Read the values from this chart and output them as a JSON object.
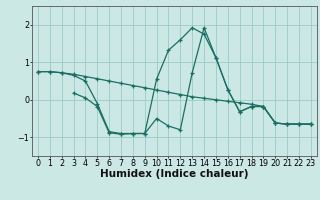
{
  "title": "",
  "xlabel": "Humidex (Indice chaleur)",
  "bg_color": "#cce8e4",
  "line_color": "#1a6e64",
  "grid_color": "#99ccc6",
  "spine_color": "#555555",
  "xlim": [
    -0.5,
    23.5
  ],
  "ylim": [
    -1.5,
    2.5
  ],
  "yticks": [
    -1,
    0,
    1,
    2
  ],
  "xticks": [
    0,
    1,
    2,
    3,
    4,
    5,
    6,
    7,
    8,
    9,
    10,
    11,
    12,
    13,
    14,
    15,
    16,
    17,
    18,
    19,
    20,
    21,
    22,
    23
  ],
  "line1_x": [
    0,
    1,
    2,
    3,
    4,
    5,
    6,
    7,
    8,
    9,
    10,
    11,
    12,
    13,
    14,
    15,
    16,
    17,
    18,
    19,
    20,
    21,
    22,
    23
  ],
  "line1_y": [
    0.75,
    0.75,
    0.72,
    0.68,
    0.62,
    0.56,
    0.5,
    0.44,
    0.38,
    0.32,
    0.26,
    0.2,
    0.14,
    0.08,
    0.04,
    0.0,
    -0.04,
    -0.08,
    -0.12,
    -0.18,
    -0.62,
    -0.65,
    -0.65,
    -0.65
  ],
  "line2_x": [
    0,
    1,
    2,
    3,
    4,
    5,
    6,
    7,
    8,
    9,
    10,
    11,
    12,
    13,
    14,
    15,
    16,
    17,
    18,
    19,
    20,
    21,
    22,
    23
  ],
  "line2_y": [
    0.75,
    0.75,
    0.72,
    0.65,
    0.5,
    -0.1,
    -0.85,
    -0.9,
    -0.9,
    -0.9,
    -0.5,
    -0.7,
    -0.8,
    0.72,
    1.92,
    1.12,
    0.27,
    -0.32,
    -0.18,
    -0.18,
    -0.62,
    -0.65,
    -0.65,
    -0.65
  ],
  "line3_x": [
    3,
    4,
    5,
    6,
    7,
    8,
    9,
    10,
    11,
    12,
    13,
    14,
    15,
    16,
    17,
    18,
    19,
    20,
    21,
    22,
    23
  ],
  "line3_y": [
    0.18,
    0.05,
    -0.18,
    -0.88,
    -0.92,
    -0.9,
    -0.9,
    0.55,
    1.32,
    1.6,
    1.92,
    1.75,
    1.12,
    0.27,
    -0.32,
    -0.18,
    -0.18,
    -0.62,
    -0.65,
    -0.65,
    -0.65
  ],
  "tick_fontsize": 5.8,
  "xlabel_fontsize": 7.5,
  "xlabel_fontweight": "bold"
}
